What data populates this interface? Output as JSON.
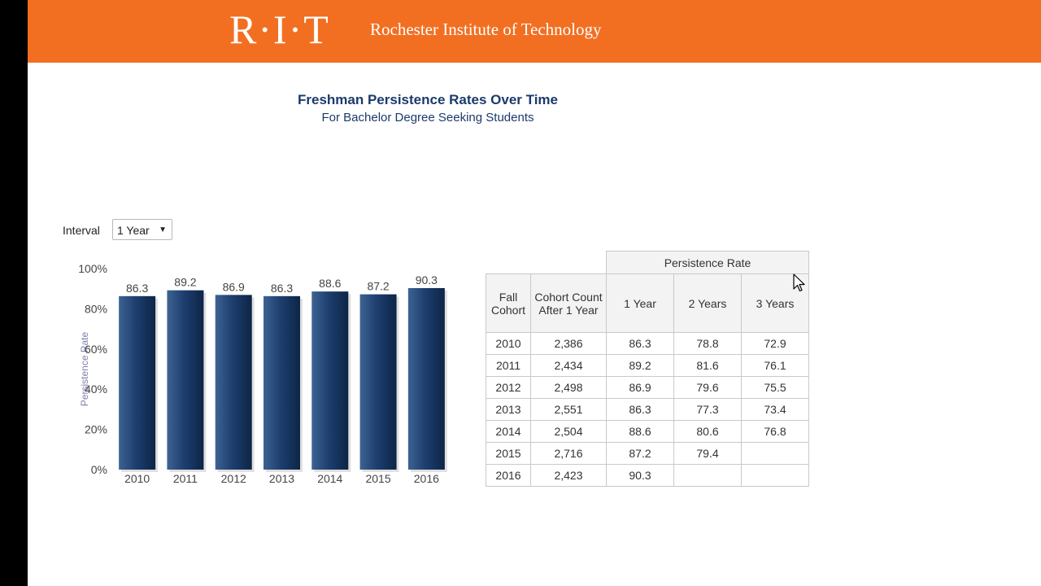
{
  "header": {
    "logo_text": "R·I·T",
    "institute_name": "Rochester Institute of Technology",
    "bg_color": "#f26f22"
  },
  "title": "Freshman Persistence Rates Over Time",
  "subtitle": "For Bachelor Degree Seeking Students",
  "interval": {
    "label": "Interval",
    "selected": "1 Year",
    "arrow_icon": "dropdown-arrow-icon"
  },
  "chart_data": {
    "type": "bar",
    "categories": [
      "2010",
      "2011",
      "2012",
      "2013",
      "2014",
      "2015",
      "2016"
    ],
    "values": [
      86.3,
      89.2,
      86.9,
      86.3,
      88.6,
      87.2,
      90.3
    ],
    "data_labels": [
      "86.3",
      "89.2",
      "86.9",
      "86.3",
      "88.6",
      "87.2",
      "90.3"
    ],
    "ylabel": "Persistence Rate",
    "ylim": [
      0,
      100
    ],
    "yticks": [
      0,
      20,
      40,
      60,
      80,
      100
    ],
    "ytick_labels": [
      "0%",
      "20%",
      "40%",
      "60%",
      "80%",
      "100%"
    ],
    "bar_color": "#1e3f6f",
    "grid": false
  },
  "table": {
    "group_header": "Persistence Rate",
    "headers": {
      "fall_cohort": "Fall Cohort",
      "cohort_count": "Cohort Count After 1 Year",
      "year1": "1 Year",
      "year2": "2 Years",
      "year3": "3 Years"
    },
    "rows": [
      {
        "cohort": "2010",
        "count": "2,386",
        "y1": "86.3",
        "y2": "78.8",
        "y3": "72.9"
      },
      {
        "cohort": "2011",
        "count": "2,434",
        "y1": "89.2",
        "y2": "81.6",
        "y3": "76.1"
      },
      {
        "cohort": "2012",
        "count": "2,498",
        "y1": "86.9",
        "y2": "79.6",
        "y3": "75.5"
      },
      {
        "cohort": "2013",
        "count": "2,551",
        "y1": "86.3",
        "y2": "77.3",
        "y3": "73.4"
      },
      {
        "cohort": "2014",
        "count": "2,504",
        "y1": "88.6",
        "y2": "80.6",
        "y3": "76.8"
      },
      {
        "cohort": "2015",
        "count": "2,716",
        "y1": "87.2",
        "y2": "79.4",
        "y3": ""
      },
      {
        "cohort": "2016",
        "count": "2,423",
        "y1": "90.3",
        "y2": "",
        "y3": ""
      }
    ]
  }
}
